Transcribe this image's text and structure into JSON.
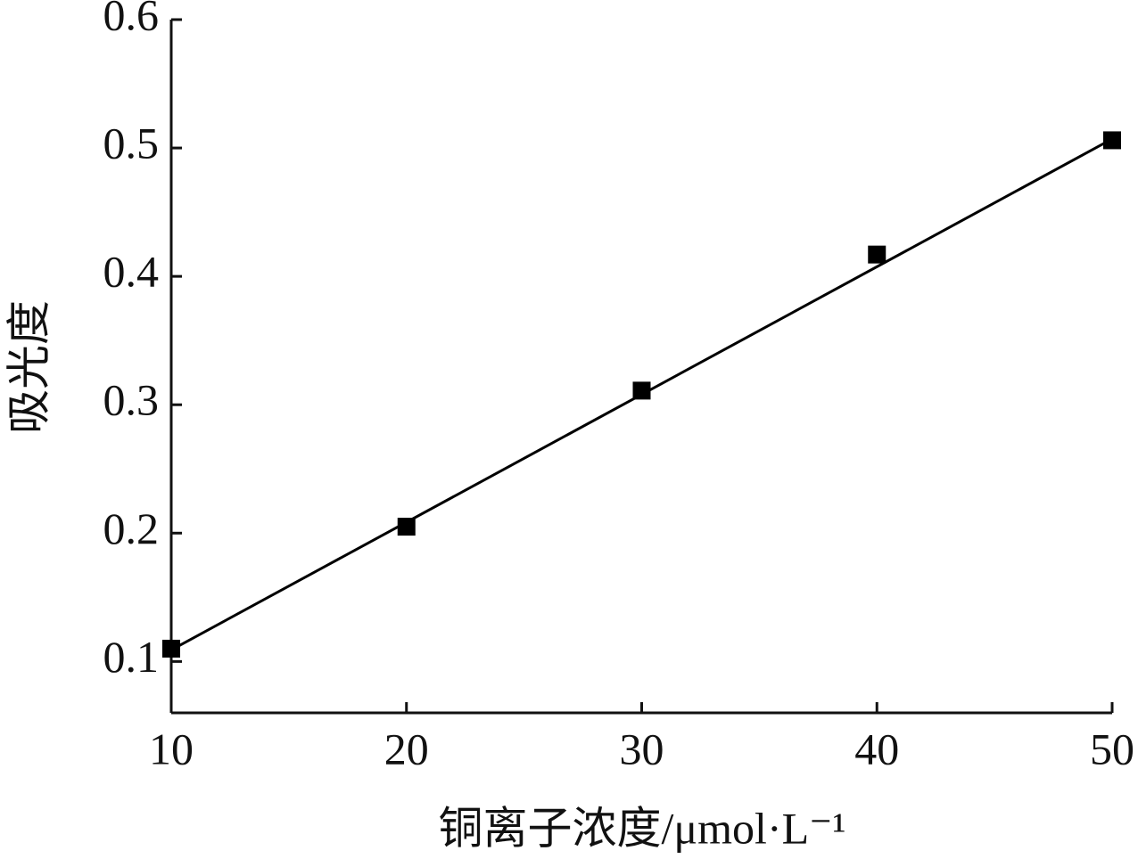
{
  "chart_data": {
    "type": "scatter",
    "x_label": "铜离子浓度/μmol·L⁻¹",
    "y_label": "吸光度",
    "x": [
      10,
      20,
      30,
      40,
      50
    ],
    "series": [
      {
        "values": [
          0.11,
          0.205,
          0.311,
          0.417,
          0.506
        ],
        "color": "#000000",
        "marker": "square"
      }
    ],
    "fit_line": {
      "x": [
        10,
        50
      ],
      "values": [
        0.109,
        0.507
      ],
      "color": "#000000"
    },
    "xlim": [
      10,
      50
    ],
    "xticks": [
      10,
      20,
      30,
      40,
      50
    ],
    "ylim": [
      0.06,
      0.6
    ],
    "yticks": [
      0.1,
      0.2,
      0.3,
      0.4,
      0.5,
      0.6
    ],
    "grid": false
  }
}
